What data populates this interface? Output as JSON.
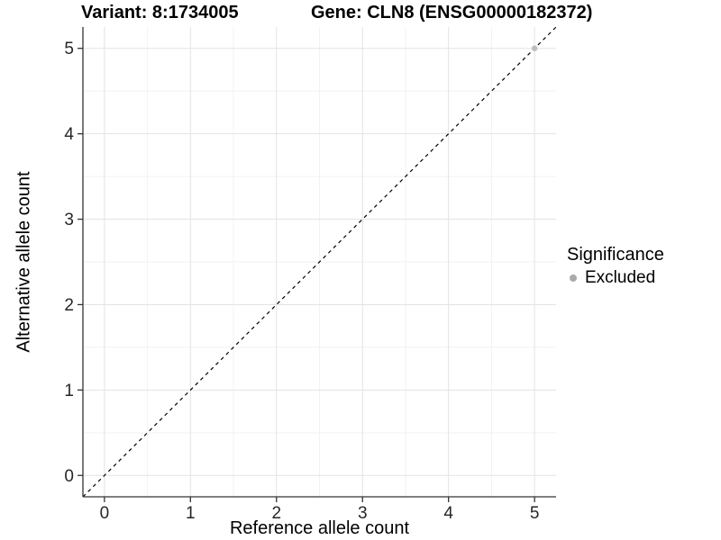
{
  "chart_data": {
    "type": "scatter",
    "title_left": "Variant: 8:1734005",
    "title_right": "Gene: CLN8 (ENSG00000182372)",
    "xlabel": "Reference allele count",
    "ylabel": "Alternative allele count",
    "xlim": [
      -0.25,
      5.25
    ],
    "ylim": [
      -0.25,
      5.25
    ],
    "x_ticks": [
      0,
      1,
      2,
      3,
      4,
      5
    ],
    "y_ticks": [
      0,
      1,
      2,
      3,
      4,
      5
    ],
    "x_minor_ticks": [
      0.5,
      1.5,
      2.5,
      3.5,
      4.5
    ],
    "y_minor_ticks": [
      0.5,
      1.5,
      2.5,
      3.5,
      4.5
    ],
    "grid": "major-and-minor",
    "reference_line": {
      "slope": 1,
      "intercept": 0,
      "line_style": "dashed",
      "color": "#000000"
    },
    "series": [
      {
        "name": "Excluded",
        "color": "#bcbcbc",
        "points": [
          {
            "x": 5,
            "y": 5
          }
        ]
      }
    ],
    "legend": {
      "title": "Significance",
      "position": "right",
      "entries": [
        {
          "label": "Excluded",
          "color": "#aaaaaa"
        }
      ]
    },
    "colors": {
      "background": "#ffffff",
      "grid_major": "#e3e3e3",
      "grid_minor": "#f2f2f2",
      "axis_line": "#333333",
      "tick_mark": "#333333",
      "tick_text": "#262626",
      "title_text": "#000000"
    }
  }
}
